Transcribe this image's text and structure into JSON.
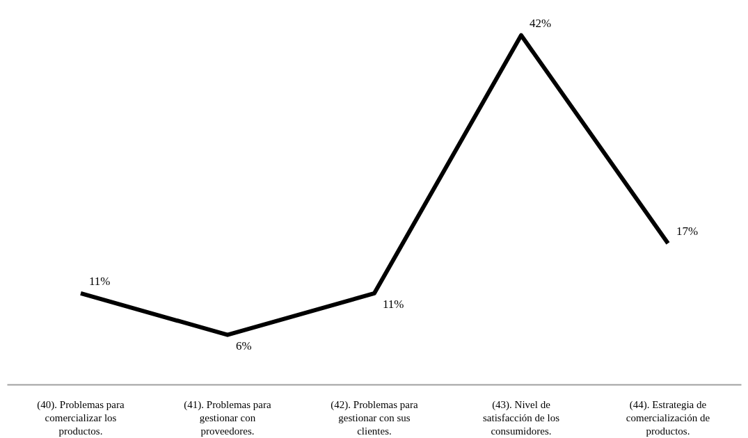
{
  "chart_data": {
    "type": "line",
    "categories": [
      "(40). Problemas para comercializar los productos.",
      "(41). Problemas para gestionar con proveedores.",
      "(42). Problemas para gestionar con sus clientes.",
      "(43). Nivel de satisfacción de los consumidores.",
      "(44). Estrategia de comercialización de productos."
    ],
    "series": [
      {
        "color": "#000000",
        "values": [
          11,
          6,
          11,
          42,
          17
        ],
        "value_labels": [
          "11%",
          "6%",
          "11%",
          "42%",
          "17%"
        ]
      }
    ],
    "grid": false,
    "marker": "none",
    "line_style": "solid",
    "tick_labels": "x"
  }
}
